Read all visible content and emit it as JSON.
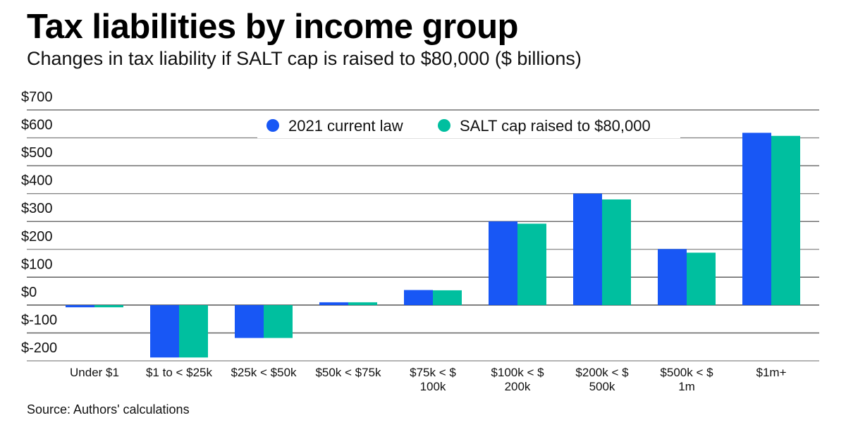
{
  "header": {
    "title": "Tax liabilities by income group",
    "subtitle": "Changes in tax liability if SALT cap is raised to $80,000 ($ billions)"
  },
  "footer": {
    "source": "Source: Authors' calculations"
  },
  "colors": {
    "current_law": "#1857F5",
    "salt_raised": "#00BF9F",
    "gridline": "#555555"
  },
  "chart_data": {
    "type": "bar",
    "title": "Tax liabilities by income group",
    "subtitle": "Changes in tax liability if SALT cap is raised to $80,000 ($ billions)",
    "xlabel": "",
    "ylabel": "",
    "ylim": [
      -200,
      700
    ],
    "yticks": [
      700,
      600,
      500,
      400,
      300,
      200,
      100,
      0,
      -100,
      -200
    ],
    "ytick_labels": [
      "$700",
      "$600",
      "$500",
      "$400",
      "$300",
      "$200",
      "$100",
      "$0",
      "$-100",
      "$-200"
    ],
    "grid": true,
    "legend_position": "top-center",
    "categories": [
      [
        "Under $1"
      ],
      [
        "$1 to < $25k"
      ],
      [
        "$25k < $50k"
      ],
      [
        "$50k < $75k"
      ],
      [
        "$75k < $",
        "100k"
      ],
      [
        "$100k < $",
        "200k"
      ],
      [
        "$200k < $",
        "500k"
      ],
      [
        "$500k < $",
        "1m"
      ],
      [
        "$1m+"
      ]
    ],
    "series": [
      {
        "name": "2021 current law",
        "color": "#1857F5",
        "values": [
          -8,
          -188,
          -118,
          10,
          54,
          300,
          400,
          201,
          618
        ]
      },
      {
        "name": "SALT cap raised to $80,000",
        "color": "#00BF9F",
        "values": [
          -8,
          -188,
          -118,
          10,
          53,
          292,
          379,
          188,
          607
        ]
      }
    ],
    "source": "Source: Authors' calculations"
  }
}
